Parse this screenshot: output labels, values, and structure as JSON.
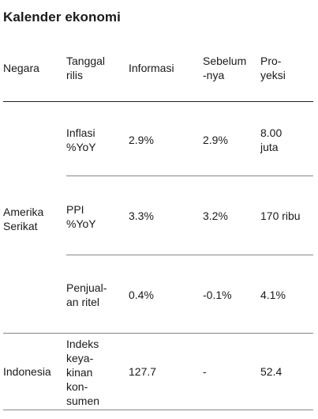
{
  "title": "Kalender ekonomi",
  "headers": {
    "country": "Negara",
    "release_date": "Tanggal\nrilis",
    "information": "Informasi",
    "previous": "Sebelum\n-nya",
    "projection": "Pro-\nyeksi"
  },
  "groups": [
    {
      "country": "Amerika\nSerikat",
      "rows": [
        {
          "release": "Inflasi\n%YoY",
          "info": "2.9%",
          "previous": "2.9%",
          "projection": "8.00\njuta"
        },
        {
          "release": "PPI\n%YoY",
          "info": "3.3%",
          "previous": "3.2%",
          "projection": "170 ribu"
        },
        {
          "release": "Penjual-\nan ritel",
          "info": "0.4%",
          "previous": "-0.1%",
          "projection": "4.1%"
        }
      ]
    },
    {
      "country": "Indonesia",
      "rows": [
        {
          "release": "Indeks\nkeya-\nkinan\nkon-\nsumen",
          "info": "127.7",
          "previous": "-",
          "projection": "52.4"
        }
      ]
    }
  ]
}
